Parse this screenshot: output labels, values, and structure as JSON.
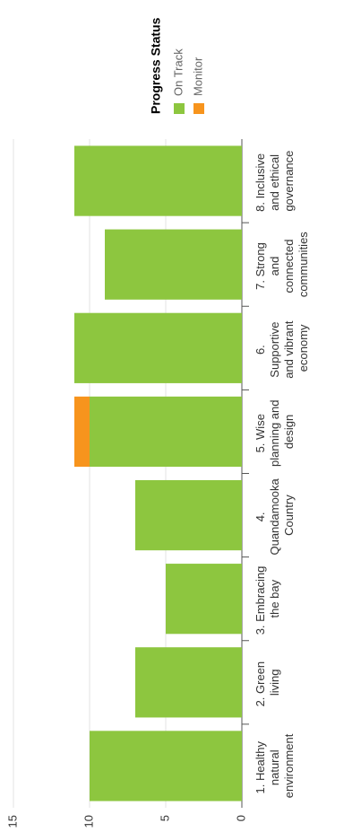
{
  "chart_data": {
    "type": "stacked_bar",
    "categories": [
      "1. Healthy natural environment",
      "2. Green living",
      "3. Embracing the bay",
      "4. Quandamooka Country",
      "5. Wise planning and design",
      "6. Supportive and vibrant economy",
      "7. Strong and connected communities",
      "8. Inclusive and ethical governance"
    ],
    "series": [
      {
        "name": "On Track",
        "color": "#8dc63f",
        "values": [
          10,
          7,
          5,
          7,
          10,
          11,
          9,
          11
        ]
      },
      {
        "name": "Monitor",
        "color": "#f7941d",
        "values": [
          0,
          0,
          0,
          0,
          1,
          0,
          0,
          0
        ]
      }
    ],
    "legend_title": "Progress Status",
    "ylim": [
      0,
      15
    ],
    "yticks": [
      0,
      5,
      10,
      15
    ],
    "grid": true,
    "legend": "right"
  }
}
